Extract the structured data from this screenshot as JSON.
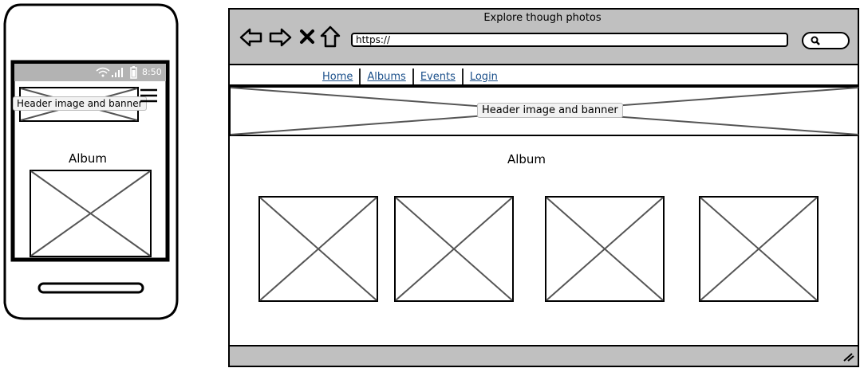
{
  "phone": {
    "status_time": "8:50",
    "banner_label": "Header image and banner",
    "album_label": "Album"
  },
  "browser": {
    "window_title": "Explore though photos",
    "url": "https://",
    "nav": [
      {
        "label": "Home"
      },
      {
        "label": "Albums"
      },
      {
        "label": "Events"
      },
      {
        "label": "Login"
      }
    ],
    "banner_label": "Header image and banner",
    "album_heading": "Album"
  },
  "colors": {
    "chrome_gray": "#c0c0c0",
    "status_gray": "#b3b3b3",
    "link_blue": "#1a4f8a",
    "placeholder_stroke": "#555555"
  }
}
